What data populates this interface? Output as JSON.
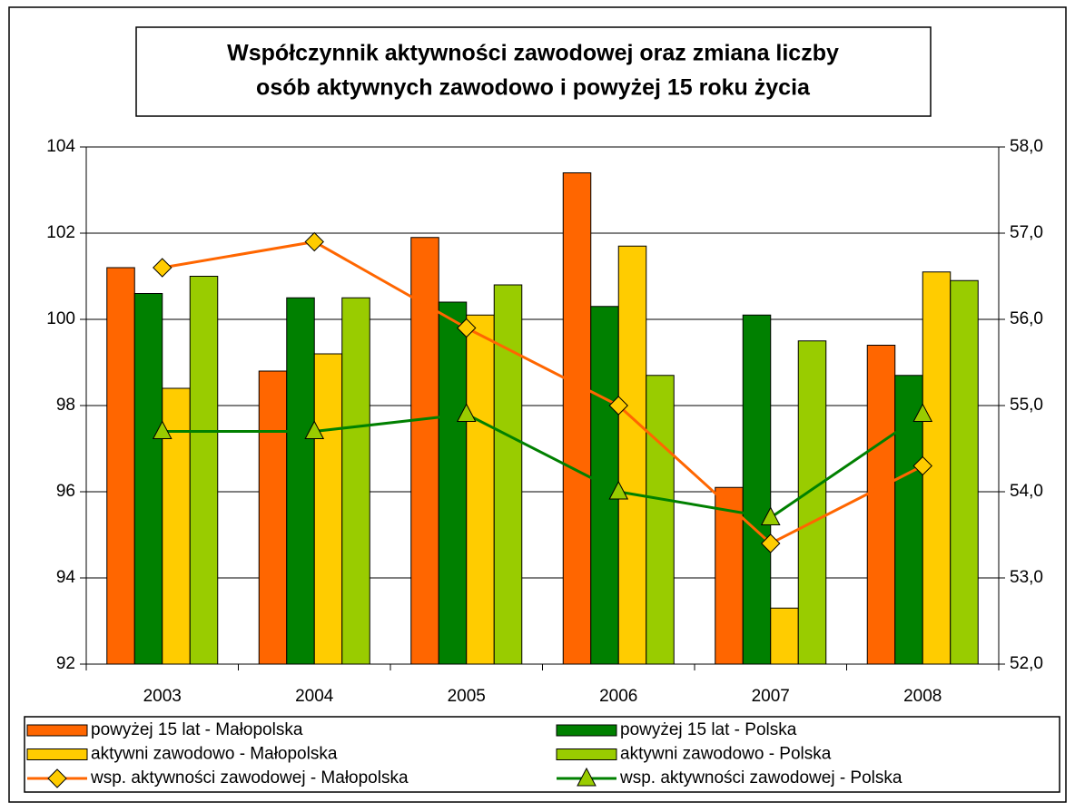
{
  "chart_data": {
    "type": "bar",
    "title": "Współczynnik aktywności zawodowej oraz zmiana liczby osób aktywnych zawodowo i powyżej 15 roku życia",
    "title_lines": [
      "Współczynnik aktywności zawodowej oraz zmiana liczby",
      "osób aktywnych zawodowo i powyżej 15 roku życia"
    ],
    "categories": [
      "2003",
      "2004",
      "2005",
      "2006",
      "2007",
      "2008"
    ],
    "ylim": [
      92,
      104
    ],
    "yticks": [
      92,
      94,
      96,
      98,
      100,
      102,
      104
    ],
    "y2lim": [
      52,
      58
    ],
    "y2ticks": [
      {
        "value": 52,
        "label": "52,0"
      },
      {
        "value": 53,
        "label": "53,0"
      },
      {
        "value": 54,
        "label": "54,0"
      },
      {
        "value": 55,
        "label": "55,0"
      },
      {
        "value": 56,
        "label": "56,0"
      },
      {
        "value": 57,
        "label": "57,0"
      },
      {
        "value": 58,
        "label": "58,0"
      }
    ],
    "grid": true,
    "series": [
      {
        "name": "powyżej 15 lat - Małopolska",
        "type": "bar",
        "color": "#ff6600",
        "values": [
          101.2,
          98.8,
          101.9,
          103.4,
          96.1,
          99.4
        ]
      },
      {
        "name": "powyżej 15 lat - Polska",
        "type": "bar",
        "color": "#008000",
        "values": [
          100.6,
          100.5,
          100.4,
          100.3,
          100.1,
          98.7
        ]
      },
      {
        "name": "aktywni zawodowo - Małopolska",
        "type": "bar",
        "color": "#ffcc00",
        "values": [
          98.4,
          99.2,
          100.1,
          101.7,
          93.3,
          101.1
        ]
      },
      {
        "name": "aktywni zawodowo - Polska",
        "type": "bar",
        "color": "#99cc00",
        "values": [
          101.0,
          100.5,
          100.8,
          98.7,
          99.5,
          100.9
        ]
      },
      {
        "name": "wsp. aktywności zawodowej - Małopolska",
        "type": "line",
        "axis": "y2",
        "color": "#ff6600",
        "marker": "diamond",
        "marker_color": "#ffcc00",
        "values": [
          56.6,
          56.9,
          55.9,
          55.0,
          53.4,
          54.3
        ]
      },
      {
        "name": "wsp. aktywności zawodowej - Polska",
        "type": "line",
        "axis": "y2",
        "color": "#008000",
        "marker": "triangle",
        "marker_color": "#99cc00",
        "values": [
          54.7,
          54.7,
          54.9,
          54.0,
          53.7,
          54.9
        ]
      }
    ]
  }
}
